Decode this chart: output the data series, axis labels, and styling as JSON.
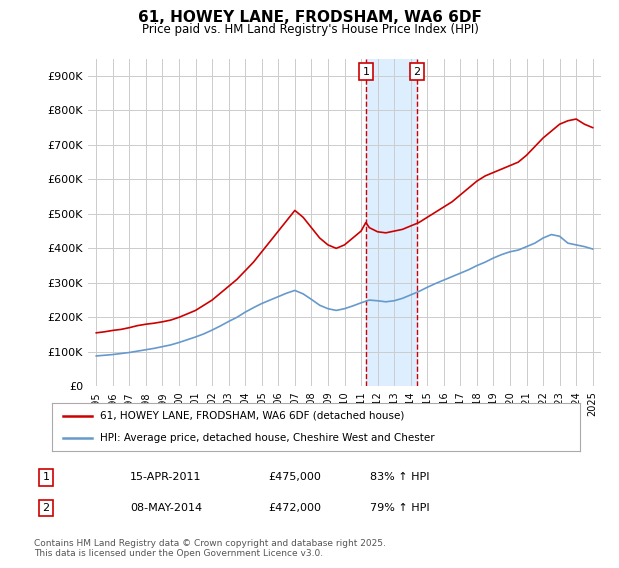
{
  "title": "61, HOWEY LANE, FRODSHAM, WA6 6DF",
  "subtitle": "Price paid vs. HM Land Registry's House Price Index (HPI)",
  "legend_line1": "61, HOWEY LANE, FRODSHAM, WA6 6DF (detached house)",
  "legend_line2": "HPI: Average price, detached house, Cheshire West and Chester",
  "footnote": "Contains HM Land Registry data © Crown copyright and database right 2025.\nThis data is licensed under the Open Government Licence v3.0.",
  "transactions": [
    {
      "label": "1",
      "date": "15-APR-2011",
      "price": 475000,
      "hpi_pct": "83% ↑ HPI",
      "x_year": 2011.29
    },
    {
      "label": "2",
      "date": "08-MAY-2014",
      "price": 472000,
      "hpi_pct": "79% ↑ HPI",
      "x_year": 2014.36
    }
  ],
  "vline_color": "#cc0000",
  "vregion_color": "#ddeeff",
  "red_line_color": "#cc0000",
  "blue_line_color": "#6699cc",
  "ylim": [
    0,
    950000
  ],
  "yticks": [
    0,
    100000,
    200000,
    300000,
    400000,
    500000,
    600000,
    700000,
    800000,
    900000
  ],
  "ytick_labels": [
    "£0",
    "£100K",
    "£200K",
    "£300K",
    "£400K",
    "£500K",
    "£600K",
    "£700K",
    "£800K",
    "£900K"
  ],
  "xlim_start": 1994.5,
  "xlim_end": 2025.5,
  "xticks": [
    1995,
    1996,
    1997,
    1998,
    1999,
    2000,
    2001,
    2002,
    2003,
    2004,
    2005,
    2006,
    2007,
    2008,
    2009,
    2010,
    2011,
    2012,
    2013,
    2014,
    2015,
    2016,
    2017,
    2018,
    2019,
    2020,
    2021,
    2022,
    2023,
    2024,
    2025
  ],
  "background_color": "#ffffff",
  "grid_color": "#cccccc",
  "red_series_x": [
    1995.0,
    1995.5,
    1996.0,
    1996.5,
    1997.0,
    1997.5,
    1998.0,
    1998.5,
    1999.0,
    1999.5,
    2000.0,
    2000.5,
    2001.0,
    2001.5,
    2002.0,
    2002.5,
    2003.0,
    2003.5,
    2004.0,
    2004.5,
    2005.0,
    2005.5,
    2006.0,
    2006.5,
    2007.0,
    2007.5,
    2008.0,
    2008.5,
    2009.0,
    2009.5,
    2010.0,
    2010.5,
    2011.0,
    2011.29,
    2011.5,
    2012.0,
    2012.5,
    2013.0,
    2013.5,
    2014.0,
    2014.36,
    2014.5,
    2015.0,
    2015.5,
    2016.0,
    2016.5,
    2017.0,
    2017.5,
    2018.0,
    2018.5,
    2019.0,
    2019.5,
    2020.0,
    2020.5,
    2021.0,
    2021.5,
    2022.0,
    2022.5,
    2023.0,
    2023.5,
    2024.0,
    2024.5,
    2025.0
  ],
  "red_series_y": [
    155000,
    158000,
    162000,
    165000,
    170000,
    176000,
    180000,
    183000,
    187000,
    192000,
    200000,
    210000,
    220000,
    235000,
    250000,
    270000,
    290000,
    310000,
    335000,
    360000,
    390000,
    420000,
    450000,
    480000,
    510000,
    490000,
    460000,
    430000,
    410000,
    400000,
    410000,
    430000,
    450000,
    475000,
    460000,
    448000,
    445000,
    450000,
    455000,
    465000,
    472000,
    475000,
    490000,
    505000,
    520000,
    535000,
    555000,
    575000,
    595000,
    610000,
    620000,
    630000,
    640000,
    650000,
    670000,
    695000,
    720000,
    740000,
    760000,
    770000,
    775000,
    760000,
    750000
  ],
  "blue_series_x": [
    1995.0,
    1995.5,
    1996.0,
    1996.5,
    1997.0,
    1997.5,
    1998.0,
    1998.5,
    1999.0,
    1999.5,
    2000.0,
    2000.5,
    2001.0,
    2001.5,
    2002.0,
    2002.5,
    2003.0,
    2003.5,
    2004.0,
    2004.5,
    2005.0,
    2005.5,
    2006.0,
    2006.5,
    2007.0,
    2007.5,
    2008.0,
    2008.5,
    2009.0,
    2009.5,
    2010.0,
    2010.5,
    2011.0,
    2011.5,
    2012.0,
    2012.5,
    2013.0,
    2013.5,
    2014.0,
    2014.5,
    2015.0,
    2015.5,
    2016.0,
    2016.5,
    2017.0,
    2017.5,
    2018.0,
    2018.5,
    2019.0,
    2019.5,
    2020.0,
    2020.5,
    2021.0,
    2021.5,
    2022.0,
    2022.5,
    2023.0,
    2023.5,
    2024.0,
    2024.5,
    2025.0
  ],
  "blue_series_y": [
    88000,
    90000,
    92000,
    95000,
    98000,
    102000,
    106000,
    110000,
    115000,
    120000,
    127000,
    135000,
    143000,
    152000,
    163000,
    175000,
    188000,
    200000,
    215000,
    228000,
    240000,
    250000,
    260000,
    270000,
    278000,
    268000,
    252000,
    235000,
    225000,
    220000,
    225000,
    233000,
    242000,
    250000,
    248000,
    245000,
    248000,
    255000,
    265000,
    275000,
    287000,
    298000,
    308000,
    318000,
    328000,
    338000,
    350000,
    360000,
    372000,
    382000,
    390000,
    395000,
    405000,
    415000,
    430000,
    440000,
    435000,
    415000,
    410000,
    405000,
    398000
  ]
}
